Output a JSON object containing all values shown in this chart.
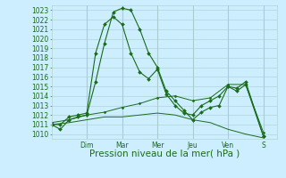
{
  "background_color": "#cceeff",
  "grid_color": "#aacccc",
  "line_color": "#1a6b1a",
  "ylim": [
    1009.5,
    1023.5
  ],
  "yticks": [
    1010,
    1011,
    1012,
    1013,
    1014,
    1015,
    1016,
    1017,
    1018,
    1019,
    1020,
    1021,
    1022,
    1023
  ],
  "xlabel": "Pression niveau de la mer( hPa )",
  "xlabel_fontsize": 7.5,
  "tick_fontsize": 5.5,
  "day_labels": [
    "Dim",
    "Mar",
    "Mer",
    "Jeu",
    "Ven",
    "S"
  ],
  "day_positions": [
    2.0,
    4.0,
    6.0,
    8.0,
    10.0,
    12.0
  ],
  "xlim": [
    0,
    12.8
  ],
  "series": [
    {
      "x": [
        0,
        0.5,
        1.0,
        1.5,
        2.0,
        2.5,
        3.0,
        3.5,
        4.0,
        4.5,
        5.0,
        5.5,
        6.0,
        6.5,
        7.0,
        7.5,
        8.0,
        8.5,
        9.0,
        9.5,
        10.0,
        10.5,
        11.0,
        12.0
      ],
      "y": [
        1011.0,
        1010.5,
        1011.5,
        1011.8,
        1012.0,
        1015.5,
        1019.5,
        1022.8,
        1023.2,
        1023.0,
        1021.0,
        1018.5,
        1017.0,
        1014.5,
        1013.5,
        1012.5,
        1011.5,
        1012.3,
        1012.8,
        1013.0,
        1015.0,
        1014.5,
        1015.2,
        1009.8
      ],
      "marker": "D",
      "markersize": 2.0,
      "linewidth": 0.8
    },
    {
      "x": [
        0,
        0.5,
        1.0,
        1.5,
        2.0,
        2.5,
        3.0,
        3.5,
        4.0,
        4.5,
        5.0,
        5.5,
        6.0,
        6.5,
        7.0,
        7.5,
        8.0,
        8.5,
        9.0,
        9.5,
        10.0,
        10.5,
        11.0,
        12.0
      ],
      "y": [
        1011.0,
        1011.0,
        1011.8,
        1012.0,
        1012.2,
        1018.5,
        1021.5,
        1022.3,
        1021.5,
        1018.5,
        1016.5,
        1015.8,
        1016.8,
        1014.2,
        1013.0,
        1012.2,
        1012.0,
        1013.0,
        1013.5,
        1014.0,
        1015.0,
        1014.8,
        1015.5,
        1009.8
      ],
      "marker": "D",
      "markersize": 2.0,
      "linewidth": 0.8
    },
    {
      "x": [
        0,
        1.0,
        2.0,
        3.0,
        4.0,
        5.0,
        6.0,
        7.0,
        8.0,
        9.0,
        10.0,
        11.0,
        12.0
      ],
      "y": [
        1011.2,
        1011.5,
        1012.0,
        1012.3,
        1012.8,
        1013.2,
        1013.8,
        1014.0,
        1013.5,
        1013.8,
        1015.2,
        1015.2,
        1010.2
      ],
      "marker": "D",
      "markersize": 1.5,
      "linewidth": 0.7
    },
    {
      "x": [
        0,
        1.0,
        2.0,
        3.0,
        4.0,
        5.0,
        6.0,
        7.0,
        8.0,
        9.0,
        10.0,
        11.0,
        12.0
      ],
      "y": [
        1011.0,
        1011.2,
        1011.5,
        1011.8,
        1011.8,
        1012.0,
        1012.2,
        1012.0,
        1011.5,
        1011.2,
        1010.5,
        1010.0,
        1009.6
      ],
      "marker": null,
      "markersize": 0,
      "linewidth": 0.7
    }
  ]
}
